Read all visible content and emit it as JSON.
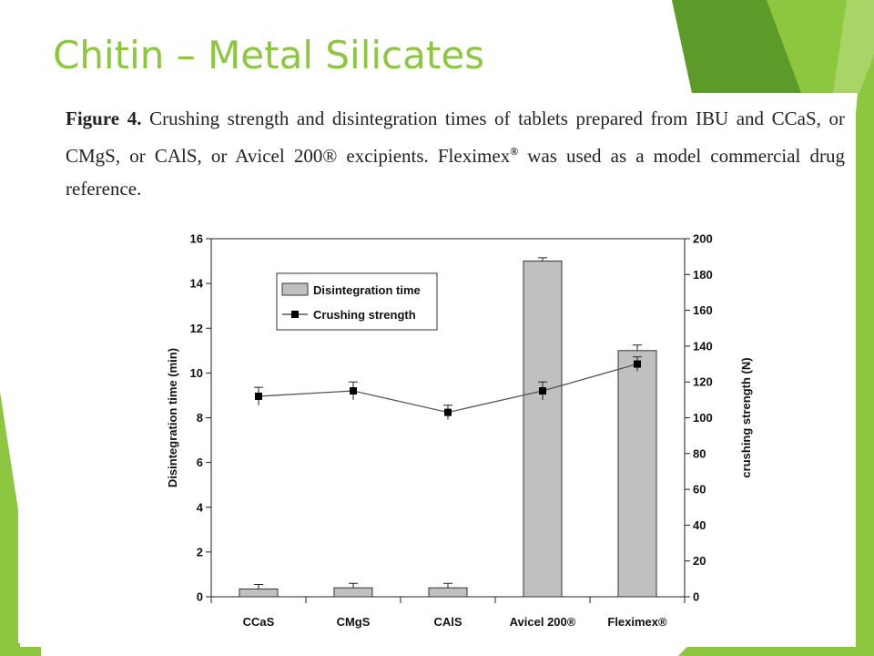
{
  "slide": {
    "title": "Chitin – Metal Silicates",
    "accent_color": "#8dc63f",
    "accent_dark": "#5c9a2a"
  },
  "caption": {
    "label": "Figure 4.",
    "text": "Crushing strength and disintegration times of tablets prepared from IBU and CCaS, or CMgS, or CAlS, or Avicel 200® excipients. Fleximex",
    "sup": "®",
    "text2": "was used as a model commercial drug reference."
  },
  "chart_data": {
    "type": "bar",
    "categories": [
      "CCaS",
      "CMgS",
      "CAlS",
      "Avicel 200®",
      "Fleximex®"
    ],
    "ylabel": "Disintegration time (min)",
    "y2label": "crushing strength (N)",
    "ylim": [
      0,
      16
    ],
    "yticks": [
      0,
      2,
      4,
      6,
      8,
      10,
      12,
      14,
      16
    ],
    "y2lim": [
      0,
      200
    ],
    "y2ticks": [
      0,
      20,
      40,
      60,
      80,
      100,
      120,
      140,
      160,
      180,
      200
    ],
    "legend_position": "top-left",
    "grid": false,
    "series": [
      {
        "name": "Disintegration time",
        "type": "bar",
        "axis": "left",
        "values": [
          0.35,
          0.4,
          0.4,
          15.0,
          11.0
        ],
        "errors": [
          0.2,
          0.2,
          0.2,
          0.15,
          0.25
        ],
        "color": "#c0c0c0"
      },
      {
        "name": "Crushing strength",
        "type": "line",
        "axis": "right",
        "values": [
          112,
          115,
          103,
          115,
          130
        ],
        "errors": [
          5,
          5,
          4,
          5,
          4
        ],
        "color": "#000000"
      }
    ]
  }
}
